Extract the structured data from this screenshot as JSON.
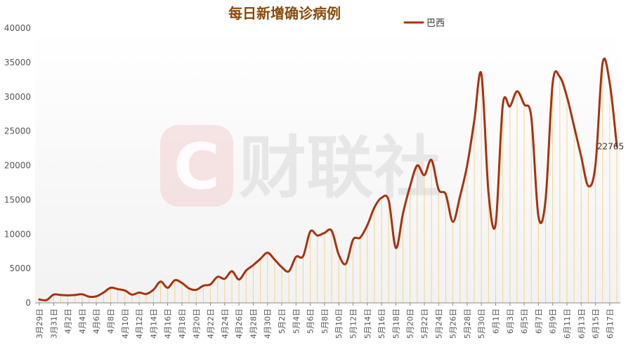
{
  "colors": {
    "series": "#a8320f",
    "title": "#8a4a0b",
    "fill_lines": "#f3c96b",
    "axis": "#555555",
    "watermark": "#d9d9d9",
    "watermark_logo": "#f3cfcf"
  },
  "watermark_text": "财联社",
  "chart_data": {
    "type": "line",
    "title": "每日新增确诊病例",
    "legend": {
      "position": "top-right",
      "entries": [
        "巴西"
      ]
    },
    "ylim": [
      0,
      40000
    ],
    "yticks": [
      0,
      5000,
      10000,
      15000,
      20000,
      25000,
      30000,
      35000,
      40000
    ],
    "xtick_labels": [
      "3月29日",
      "3月31日",
      "4月2日",
      "4月4日",
      "4月6日",
      "4月8日",
      "4月10日",
      "4月12日",
      "4月14日",
      "4月16日",
      "4月18日",
      "4月20日",
      "4月22日",
      "4月24日",
      "4月26日",
      "4月28日",
      "4月30日",
      "5月2日",
      "5月4日",
      "5月6日",
      "5月8日",
      "5月10日",
      "5月12日",
      "5月14日",
      "5月16日",
      "5月18日",
      "5月20日",
      "5月22日",
      "5月24日",
      "5月26日",
      "5月28日",
      "5月30日",
      "6月1日",
      "6月3日",
      "6月5日",
      "6月7日",
      "6月9日",
      "6月11日",
      "6月13日",
      "6月15日",
      "6月17日"
    ],
    "last_label": "22765",
    "series": [
      {
        "name": "巴西",
        "values": [
          500,
          400,
          1200,
          1150,
          1100,
          1150,
          1250,
          900,
          950,
          1500,
          2200,
          2000,
          1800,
          1200,
          1500,
          1300,
          1900,
          3100,
          2200,
          3300,
          2900,
          2100,
          1900,
          2500,
          2700,
          3800,
          3500,
          4600,
          3400,
          4700,
          5500,
          6400,
          7300,
          6300,
          5200,
          4600,
          6700,
          6800,
          10400,
          9800,
          10200,
          10500,
          7000,
          5700,
          9200,
          9500,
          11300,
          13900,
          15300,
          14900,
          8000,
          13000,
          17000,
          20000,
          18600,
          20800,
          16500,
          15800,
          11800,
          15500,
          20000,
          26500,
          33300,
          16000,
          11500,
          28800,
          28600,
          30800,
          28900,
          27000,
          12600,
          15000,
          32000,
          32900,
          30000,
          25700,
          21300,
          17000,
          20100,
          34900,
          32000,
          22765
        ]
      }
    ]
  }
}
